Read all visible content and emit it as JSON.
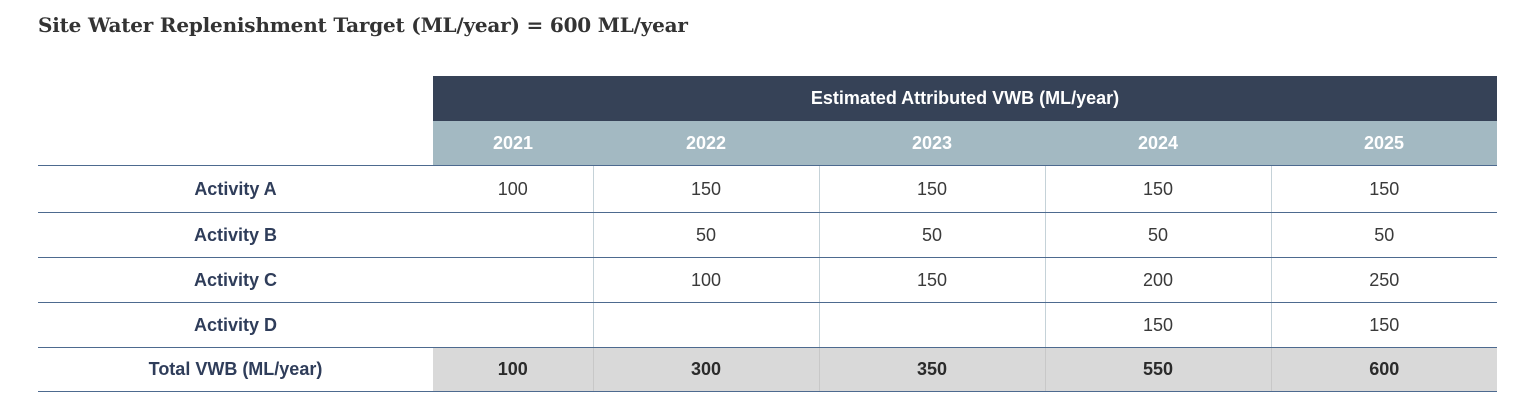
{
  "title": "Site Water Replenishment Target (ML/year) = 600 ML/year",
  "table": {
    "group_header": "Estimated Attributed VWB (ML/year)",
    "years": [
      "2021",
      "2022",
      "2023",
      "2024",
      "2025"
    ],
    "rows": [
      {
        "label": "Activity A",
        "values": [
          "100",
          "150",
          "150",
          "150",
          "150"
        ]
      },
      {
        "label": "Activity B",
        "values": [
          "",
          "50",
          "50",
          "50",
          "50"
        ]
      },
      {
        "label": "Activity C",
        "values": [
          "",
          "100",
          "150",
          "200",
          "250"
        ]
      },
      {
        "label": "Activity D",
        "values": [
          "",
          "",
          "",
          "150",
          "150"
        ]
      }
    ],
    "total": {
      "label": "Total VWB (ML/year)",
      "values": [
        "100",
        "300",
        "350",
        "550",
        "600"
      ]
    }
  },
  "colors": {
    "group_header_bg": "#364257",
    "year_header_bg": "#a3b9c2",
    "row_label_text": "#2f3d5a",
    "total_row_bg": "#d9d9d9",
    "rule_line": "#4d6a8f"
  }
}
